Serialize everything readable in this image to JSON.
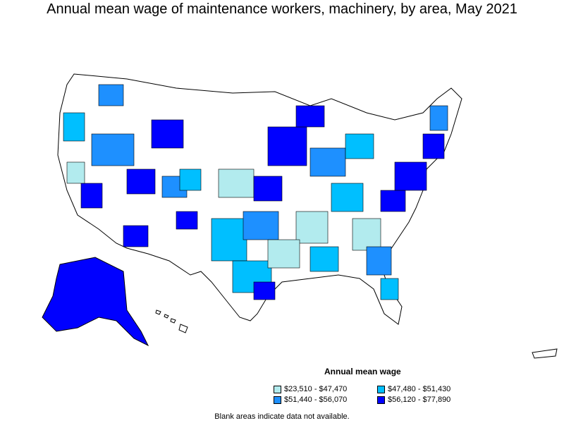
{
  "title": "Annual mean wage of maintenance workers, machinery, by area, May 2021",
  "legend": {
    "title": "Annual mean wage",
    "items": [
      {
        "label": "$23,510 - $47,470",
        "color": "#b2ebee"
      },
      {
        "label": "$47,480 - $51,430",
        "color": "#00bfff"
      },
      {
        "label": "$51,440 - $56,070",
        "color": "#1e90ff"
      },
      {
        "label": "$56,120 - $77,890",
        "color": "#0000ff"
      }
    ]
  },
  "note": "Blank areas indicate data not available.",
  "colors": {
    "border": "#000000",
    "blank": "#ffffff"
  }
}
